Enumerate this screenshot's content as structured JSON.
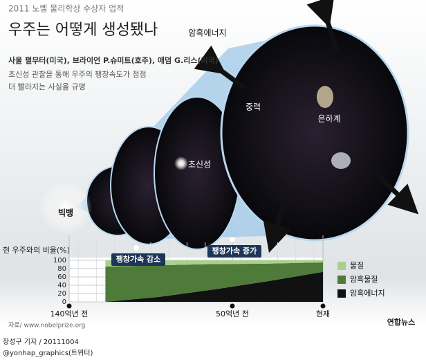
{
  "header": {
    "kicker": "2011 노벨 물리학상 수상자 업적",
    "title": "우주는 어떻게 생성됐나",
    "laureates": "사울 펄무터(미국), 브라이언 P.슈미트(호주), 애덤 G.리스(미국)",
    "desc": [
      "초신성 관찰을 통해 우주의 팽창속도가 점점",
      "더 빨라지는 사실을 규명"
    ]
  },
  "labels": {
    "dark_energy": "암흑에너지",
    "gravity": "중력",
    "galaxy": "은하계",
    "supernova": "초신성",
    "big_bang": "빅뱅"
  },
  "chart_data": {
    "type": "area",
    "stacked": true,
    "ylabel": "현 우주와의 비율(%)",
    "x": [
      120,
      90,
      60,
      30,
      0
    ],
    "xlim": [
      140,
      0
    ],
    "xticks": [
      {
        "value": 140,
        "label": "140억년 전"
      },
      {
        "value": 50,
        "label": "50억년 전"
      },
      {
        "value": 0,
        "label": "현재"
      }
    ],
    "ylim": [
      0,
      100
    ],
    "yticks": [
      0,
      20,
      40,
      60,
      80,
      100
    ],
    "grid": true,
    "series": [
      {
        "name": "물질",
        "color": "#a9d18e",
        "values": [
          15,
          12,
          9,
          8,
          5
        ]
      },
      {
        "name": "암흑물질",
        "color": "#4f7b3a",
        "values": [
          85,
          76,
          61,
          42,
          23
        ]
      },
      {
        "name": "암흑에너지",
        "color": "#111111",
        "values": [
          0,
          12,
          30,
          50,
          72
        ]
      }
    ],
    "annotations": [
      {
        "x": 103,
        "label": "팽창가속 감소"
      },
      {
        "x": 50,
        "label": "팽창가속 증가"
      }
    ],
    "source": "자료/ www.nobelprize.org"
  },
  "footer": {
    "author": "장성구 기자 / 20111004",
    "twitter": "@yonhap_graphics(트위터)",
    "logo": "연합뉴스"
  }
}
